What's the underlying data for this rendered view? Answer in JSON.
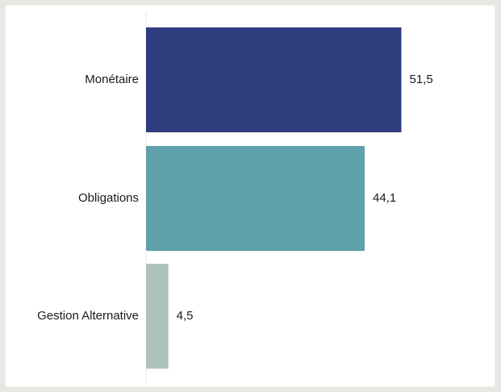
{
  "chart_data": {
    "type": "bar",
    "orientation": "horizontal",
    "categories": [
      "Monétaire",
      "Obligations",
      "Gestion Alternative"
    ],
    "values": [
      51.5,
      44.1,
      4.5
    ],
    "value_labels": [
      "51,5",
      "44,1",
      "4,5"
    ],
    "colors": [
      "#2f3c7e",
      "#5fa1ab",
      "#adc2bc"
    ],
    "title": "",
    "xlabel": "",
    "ylabel": "",
    "xlim": [
      0,
      51.5
    ],
    "grid": false,
    "legend": "none"
  }
}
